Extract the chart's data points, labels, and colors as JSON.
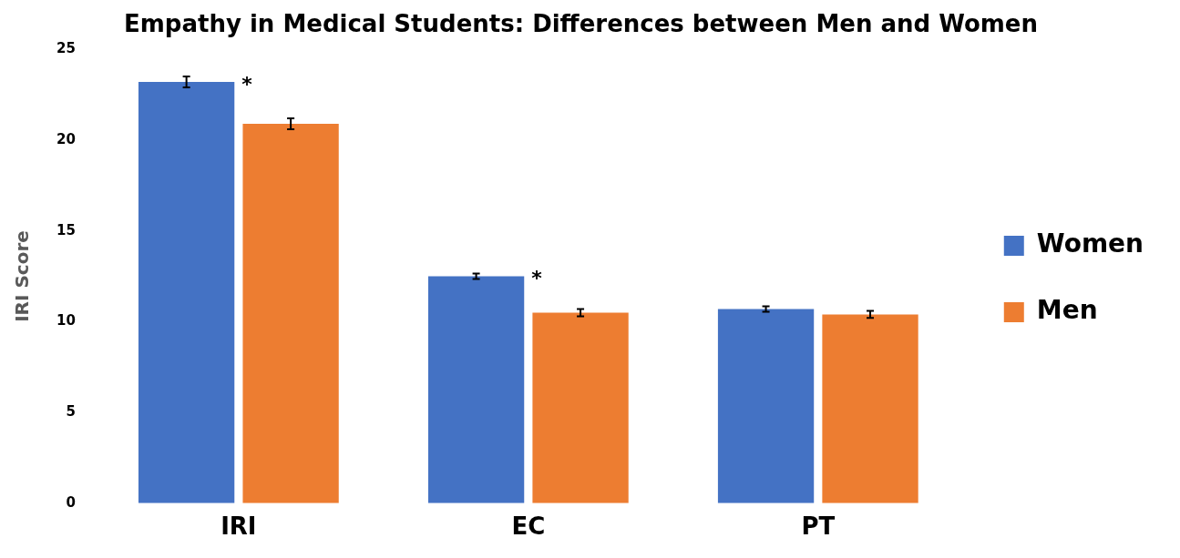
{
  "chart_data": {
    "type": "bar",
    "title": "Empathy in Medical Students: Differences between Men and Women",
    "ylabel": "IRI Score",
    "categories": [
      "IRI",
      "EC",
      "PT"
    ],
    "series": [
      {
        "name": "Women",
        "color": "#4472c4",
        "values": [
          23.2,
          12.5,
          10.7
        ],
        "errors": [
          0.3,
          0.15,
          0.15
        ]
      },
      {
        "name": "Men",
        "color": "#ed7d31",
        "values": [
          20.9,
          10.5,
          10.4
        ],
        "errors": [
          0.3,
          0.2,
          0.2
        ]
      }
    ],
    "ylim": [
      0,
      25
    ],
    "yticks": [
      0,
      5,
      10,
      15,
      20,
      25
    ],
    "grid": false,
    "legend": "right",
    "annotations": [
      {
        "text": "*",
        "x": "IRI",
        "y": 23.2
      },
      {
        "text": "*",
        "x": "EC",
        "y": 12.5
      }
    ]
  }
}
